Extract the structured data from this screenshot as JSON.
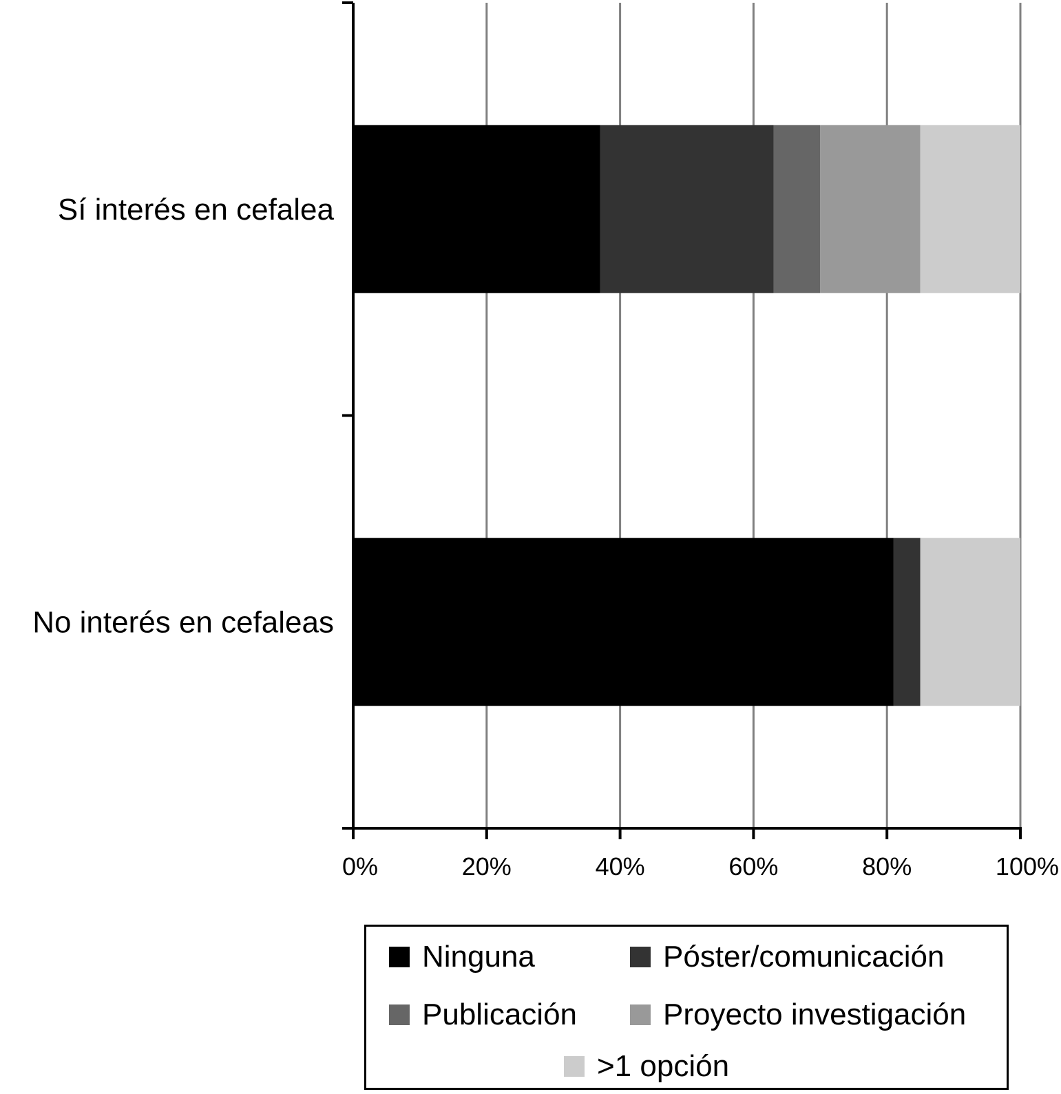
{
  "chart_data": {
    "type": "bar",
    "orientation": "horizontal",
    "stacked": true,
    "categories": [
      "Sí interés en cefalea",
      "No interés en cefaleas"
    ],
    "series": [
      {
        "name": "Ninguna",
        "color": "#000000",
        "values": [
          37,
          81
        ]
      },
      {
        "name": "Póster/comunicación",
        "color": "#333333",
        "values": [
          26,
          4
        ]
      },
      {
        "name": "Publicación",
        "color": "#666666",
        "values": [
          7,
          0
        ]
      },
      {
        "name": "Proyecto investigación",
        "color": "#999999",
        "values": [
          15,
          0
        ]
      },
      {
        "name": ">1 opción",
        "color": "#cccccc",
        "values": [
          15,
          15
        ]
      }
    ],
    "xlim": [
      0,
      100
    ],
    "x_ticks": [
      "0%",
      "20%",
      "40%",
      "60%",
      "80%",
      "100%"
    ],
    "grid": true,
    "legend_position": "bottom"
  }
}
